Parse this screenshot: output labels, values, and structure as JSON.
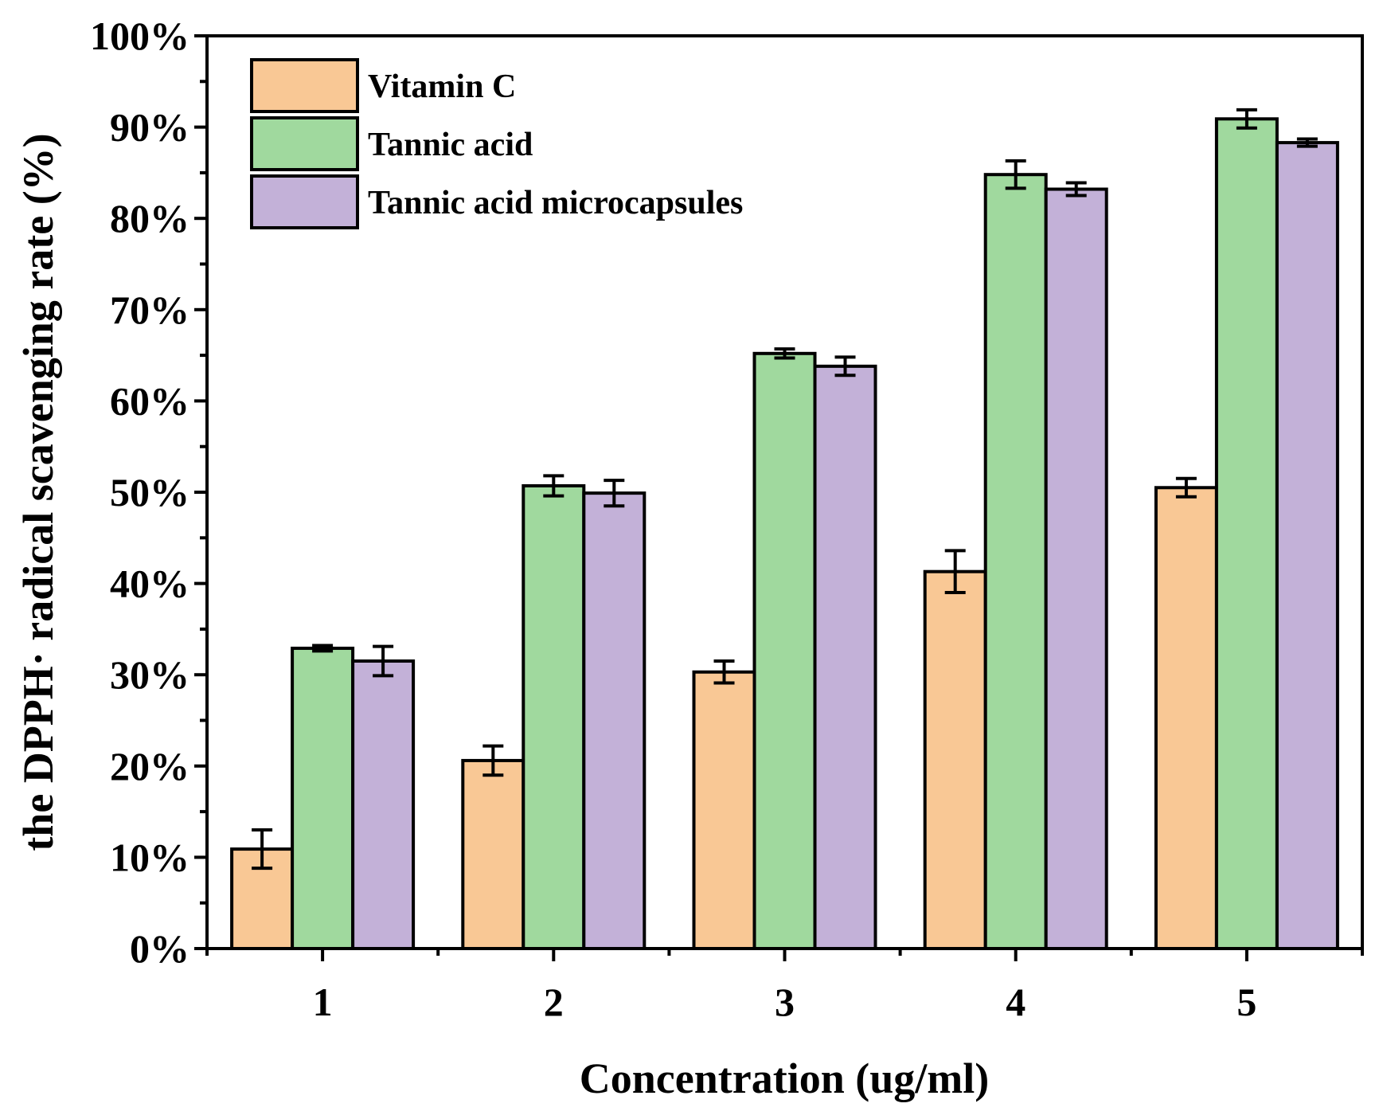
{
  "chart_data": {
    "type": "bar",
    "title": "",
    "xlabel": "Concentration (ug/ml)",
    "ylabel": "the DPPH· radical scavenging rate (%)",
    "categories": [
      "1",
      "2",
      "3",
      "4",
      "5"
    ],
    "ylim": [
      0,
      100
    ],
    "yticks": [
      "0%",
      "10%",
      "20%",
      "30%",
      "40%",
      "50%",
      "60%",
      "70%",
      "80%",
      "90%",
      "100%"
    ],
    "legend_position": "top-left",
    "grid": false,
    "series": [
      {
        "name": "Vitamin C",
        "color": "#F9C895",
        "values": [
          10.9,
          20.6,
          30.3,
          41.3,
          50.5
        ],
        "errors": [
          2.1,
          1.6,
          1.2,
          2.3,
          1.0
        ]
      },
      {
        "name": "Tannic acid",
        "color": "#A0D99E",
        "values": [
          32.9,
          50.7,
          65.2,
          84.8,
          90.9
        ],
        "errors": [
          0.3,
          1.1,
          0.5,
          1.5,
          1.0
        ]
      },
      {
        "name": "Tannic acid microcapsules",
        "color": "#C3B1D8",
        "values": [
          31.5,
          49.9,
          63.8,
          83.2,
          88.3
        ],
        "errors": [
          1.6,
          1.4,
          1.0,
          0.7,
          0.4
        ]
      }
    ]
  }
}
